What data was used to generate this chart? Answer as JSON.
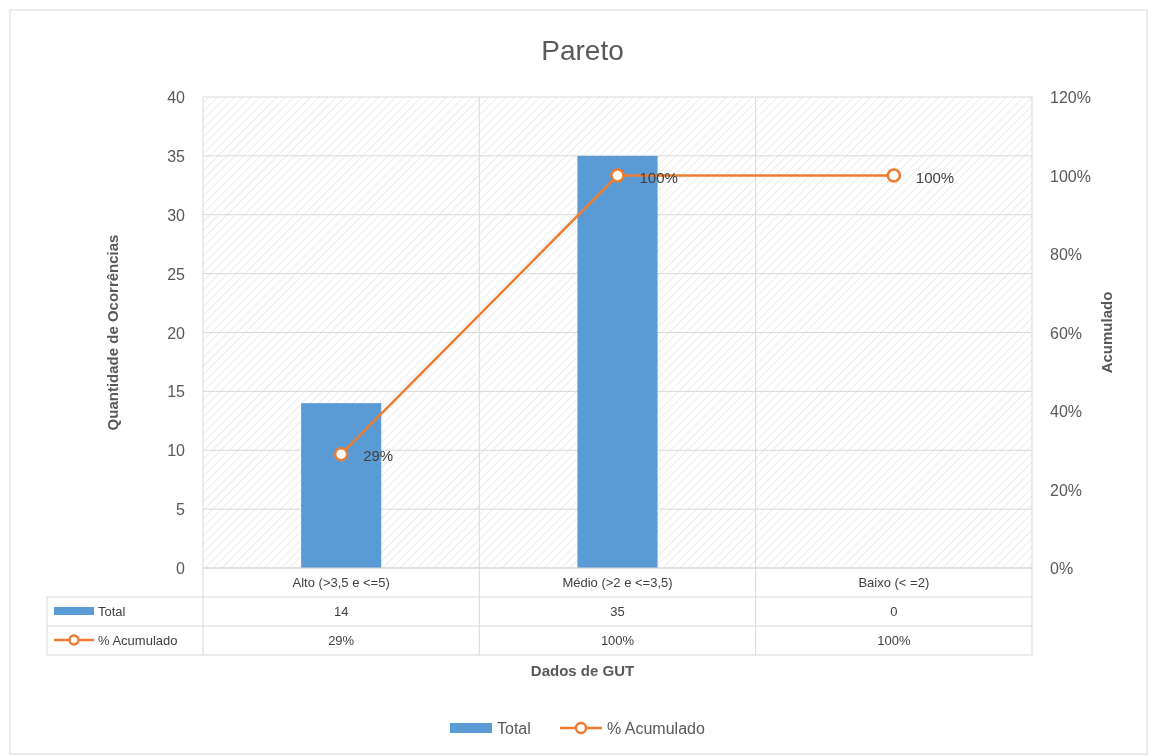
{
  "chart_data": {
    "type": "bar",
    "title": "Pareto",
    "xlabel": "Dados de GUT",
    "ylabel": "Quantidade de Ocorrências",
    "y2label": "Acumulado",
    "categories": [
      "Alto (>3,5 e <=5)",
      "Médio (>2 e <=3,5)",
      "Baixo (< =2)"
    ],
    "series": [
      {
        "name": "Total",
        "color": "#5b9bd5",
        "values": [
          14,
          35,
          0
        ],
        "value_labels": [
          "14",
          "35",
          "0"
        ]
      },
      {
        "name": "% Acumulado",
        "type": "line",
        "axis": "y2",
        "color": "#ed7d31",
        "marker": "circle",
        "values": [
          29,
          100,
          100
        ],
        "value_labels": [
          "29%",
          "100%",
          "100%"
        ]
      }
    ],
    "ylim": [
      0,
      40
    ],
    "yticks": [
      0,
      5,
      10,
      15,
      20,
      25,
      30,
      35,
      40
    ],
    "y2lim": [
      0,
      120
    ],
    "y2ticks": [
      {
        "value": 0,
        "label": "0%"
      },
      {
        "value": 20,
        "label": "20%"
      },
      {
        "value": 40,
        "label": "40%"
      },
      {
        "value": 60,
        "label": "60%"
      },
      {
        "value": 80,
        "label": "80%"
      },
      {
        "value": 100,
        "label": "100%"
      },
      {
        "value": 120,
        "label": "120%"
      }
    ],
    "grid": "y",
    "legend": "bottom"
  }
}
